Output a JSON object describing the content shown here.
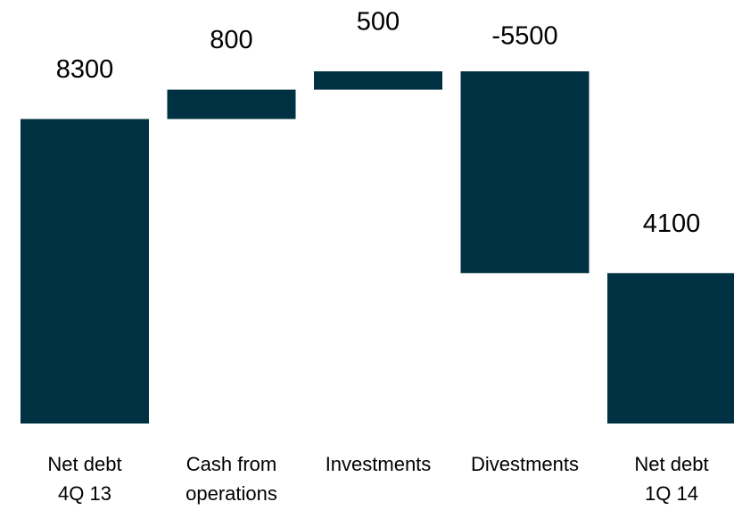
{
  "chart_data": {
    "type": "waterfall",
    "categories": [
      [
        "Net debt",
        "4Q 13"
      ],
      [
        "Cash from",
        "operations"
      ],
      [
        "Investments"
      ],
      [
        "Divestments"
      ],
      [
        "Net debt",
        "1Q 14"
      ]
    ],
    "values": [
      8300,
      800,
      500,
      -5500,
      4100
    ],
    "color": "#003142"
  }
}
